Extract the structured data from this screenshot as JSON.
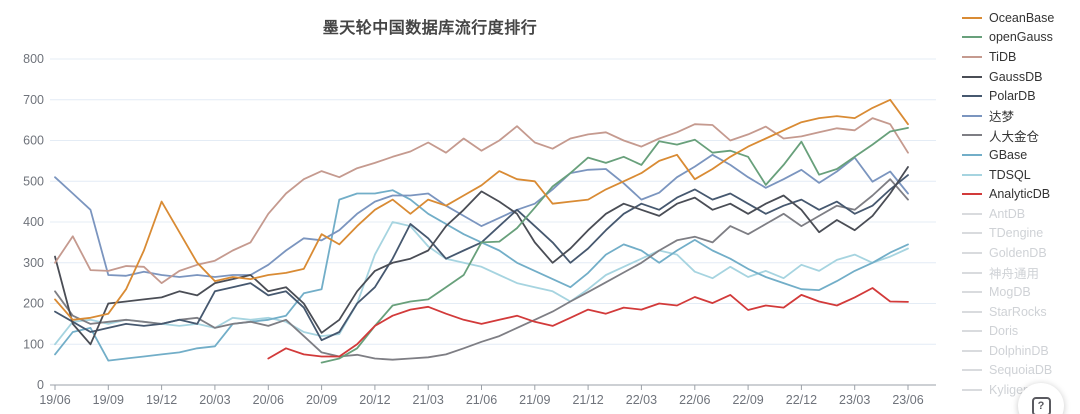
{
  "chart": {
    "title": "墨天轮中国数据库流行度排行"
  },
  "help_button": {
    "icon": "?"
  },
  "colors": {
    "grid": "#e4ecf5",
    "axis": "#9ba1a8",
    "tick_label": "#6f737b",
    "inactive_legend": "#d9dbde"
  },
  "chart_data": {
    "type": "line",
    "title": "墨天轮中国数据库流行度排行",
    "x_interval": "monthly",
    "x_start": "19/06",
    "x_end": "23/06",
    "x_tick_labels": [
      "19/06",
      "19/09",
      "19/12",
      "20/03",
      "20/06",
      "20/09",
      "20/12",
      "21/03",
      "21/06",
      "21/09",
      "21/12",
      "22/03",
      "22/06",
      "22/09",
      "22/12",
      "23/03",
      "23/06"
    ],
    "y_ticks": [
      0,
      100,
      200,
      300,
      400,
      500,
      600,
      700,
      800
    ],
    "ylim": [
      0,
      800
    ],
    "grid": true,
    "legend_position": "right",
    "series": [
      {
        "name": "OceanBase",
        "color": "#d98b34",
        "active": true,
        "start_index": 0,
        "values": [
          210,
          160,
          165,
          175,
          235,
          330,
          450,
          375,
          300,
          255,
          265,
          260,
          270,
          275,
          285,
          370,
          345,
          390,
          430,
          455,
          420,
          455,
          440,
          465,
          490,
          525,
          505,
          500,
          445,
          450,
          455,
          480,
          500,
          520,
          550,
          565,
          505,
          530,
          560,
          585,
          605,
          625,
          645,
          655,
          660,
          655,
          680,
          700,
          640
        ]
      },
      {
        "name": "openGauss",
        "color": "#68a07b",
        "active": true,
        "start_index": 15,
        "values": [
          55,
          65,
          90,
          145,
          195,
          205,
          210,
          240,
          270,
          350,
          352,
          385,
          435,
          487,
          520,
          558,
          545,
          560,
          540,
          598,
          590,
          602,
          570,
          575,
          560,
          491,
          540,
          597,
          516,
          530,
          560,
          590,
          622,
          631
        ]
      },
      {
        "name": "TiDB",
        "color": "#c59a8f",
        "active": true,
        "start_index": 0,
        "values": [
          300,
          365,
          282,
          280,
          292,
          290,
          250,
          280,
          295,
          305,
          330,
          350,
          420,
          470,
          505,
          525,
          510,
          532,
          545,
          560,
          573,
          595,
          570,
          605,
          575,
          600,
          635,
          595,
          580,
          605,
          615,
          620,
          600,
          585,
          605,
          620,
          640,
          638,
          600,
          615,
          634,
          605,
          610,
          620,
          630,
          625,
          655,
          640,
          570
        ]
      },
      {
        "name": "GaussDB",
        "color": "#4a4d55",
        "active": true,
        "start_index": 0,
        "values": [
          315,
          150,
          100,
          200,
          205,
          210,
          215,
          230,
          220,
          250,
          260,
          270,
          230,
          240,
          200,
          128,
          160,
          230,
          280,
          300,
          310,
          330,
          390,
          430,
          475,
          450,
          420,
          350,
          300,
          335,
          380,
          420,
          445,
          430,
          415,
          445,
          460,
          430,
          445,
          420,
          445,
          465,
          430,
          375,
          405,
          380,
          415,
          470,
          535
        ]
      },
      {
        "name": "PolarDB",
        "color": "#46586f",
        "active": true,
        "start_index": 0,
        "values": [
          180,
          155,
          130,
          140,
          150,
          145,
          150,
          160,
          150,
          230,
          240,
          250,
          220,
          230,
          190,
          110,
          130,
          200,
          240,
          310,
          395,
          360,
          310,
          330,
          350,
          390,
          430,
          390,
          350,
          300,
          335,
          380,
          420,
          445,
          430,
          460,
          480,
          455,
          470,
          445,
          420,
          440,
          455,
          430,
          450,
          420,
          440,
          480,
          515
        ]
      },
      {
        "name": "达梦",
        "color": "#7b95bf",
        "active": true,
        "start_index": 0,
        "values": [
          510,
          470,
          430,
          270,
          268,
          278,
          270,
          265,
          270,
          265,
          270,
          270,
          295,
          330,
          360,
          355,
          380,
          420,
          450,
          465,
          465,
          470,
          440,
          415,
          390,
          410,
          430,
          445,
          480,
          520,
          528,
          530,
          495,
          455,
          472,
          510,
          536,
          565,
          540,
          510,
          484,
          505,
          528,
          496,
          524,
          558,
          499,
          524,
          470
        ]
      },
      {
        "name": "人大金仓",
        "color": "#7e7e84",
        "active": true,
        "start_index": 0,
        "values": [
          230,
          170,
          150,
          155,
          160,
          155,
          150,
          160,
          165,
          140,
          150,
          155,
          145,
          160,
          120,
          80,
          70,
          74,
          65,
          62,
          65,
          68,
          75,
          90,
          106,
          120,
          140,
          160,
          180,
          205,
          228,
          252,
          276,
          300,
          330,
          355,
          364,
          350,
          390,
          370,
          395,
          420,
          390,
          415,
          440,
          430,
          465,
          505,
          455
        ]
      },
      {
        "name": "GBase",
        "color": "#72aec8",
        "active": true,
        "start_index": 0,
        "values": [
          75,
          130,
          140,
          60,
          65,
          70,
          75,
          80,
          90,
          95,
          150,
          155,
          160,
          170,
          225,
          235,
          455,
          470,
          470,
          478,
          455,
          420,
          395,
          370,
          350,
          330,
          300,
          280,
          260,
          240,
          275,
          320,
          345,
          330,
          300,
          330,
          356,
          330,
          310,
          285,
          265,
          250,
          235,
          233,
          255,
          280,
          300,
          325,
          345
        ]
      },
      {
        "name": "TDSQL",
        "color": "#a6d4e0",
        "active": true,
        "start_index": 0,
        "values": [
          100,
          155,
          160,
          150,
          160,
          155,
          150,
          145,
          150,
          140,
          165,
          160,
          165,
          155,
          130,
          120,
          125,
          200,
          320,
          400,
          390,
          340,
          310,
          300,
          290,
          270,
          250,
          240,
          230,
          205,
          235,
          270,
          290,
          310,
          330,
          320,
          278,
          262,
          290,
          265,
          280,
          262,
          295,
          280,
          307,
          320,
          300,
          315,
          335
        ]
      },
      {
        "name": "AnalyticDB",
        "color": "#d23a3a",
        "active": true,
        "start_index": 12,
        "values": [
          65,
          90,
          75,
          70,
          70,
          100,
          145,
          170,
          185,
          192,
          175,
          160,
          150,
          160,
          170,
          155,
          145,
          165,
          185,
          175,
          190,
          185,
          200,
          195,
          216,
          201,
          221,
          184,
          195,
          190,
          221,
          205,
          195,
          215,
          238,
          205,
          204
        ]
      },
      {
        "name": "AntDB",
        "active": false,
        "values": []
      },
      {
        "name": "TDengine",
        "active": false,
        "values": []
      },
      {
        "name": "GoldenDB",
        "active": false,
        "values": []
      },
      {
        "name": "神舟通用",
        "active": false,
        "values": []
      },
      {
        "name": "MogDB",
        "active": false,
        "values": []
      },
      {
        "name": "StarRocks",
        "active": false,
        "values": []
      },
      {
        "name": "Doris",
        "active": false,
        "values": []
      },
      {
        "name": "DolphinDB",
        "active": false,
        "values": []
      },
      {
        "name": "SequoiaDB",
        "active": false,
        "values": []
      },
      {
        "name": "Kyligence",
        "active": false,
        "values": []
      }
    ]
  }
}
